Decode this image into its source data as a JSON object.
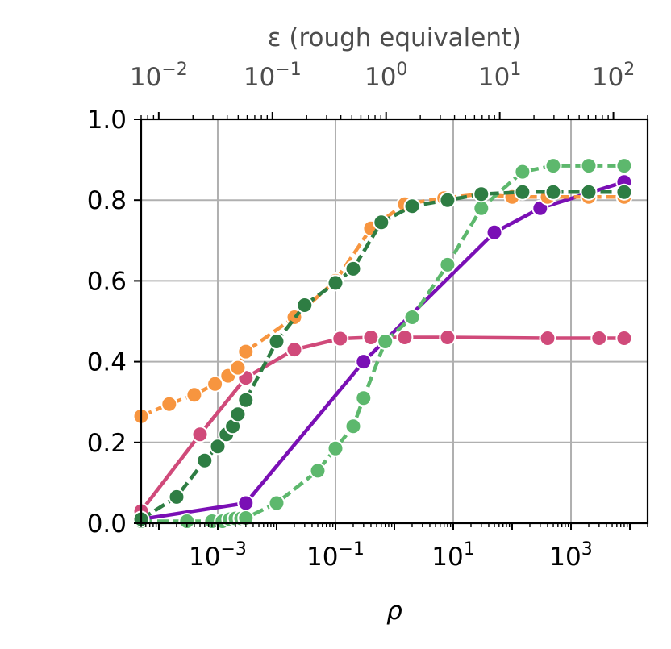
{
  "chart_data": {
    "type": "line",
    "xlabel": "ρ",
    "x_scale": "log",
    "xlim": [
      5e-05,
      20000
    ],
    "ylim": [
      0.0,
      1.0
    ],
    "grid": true,
    "legend": "none",
    "x_ticks": [
      {
        "value": 0.001,
        "base": "10",
        "exp": "−3"
      },
      {
        "value": 0.1,
        "base": "10",
        "exp": "−1"
      },
      {
        "value": 10,
        "base": "10",
        "exp": "1"
      },
      {
        "value": 1000,
        "base": "10",
        "exp": "3"
      }
    ],
    "y_ticks": [
      {
        "value": 0.0,
        "label": "0.0"
      },
      {
        "value": 0.2,
        "label": "0.2"
      },
      {
        "value": 0.4,
        "label": "0.4"
      },
      {
        "value": 0.6,
        "label": "0.6"
      },
      {
        "value": 0.8,
        "label": "0.8"
      },
      {
        "value": 1.0,
        "label": "1.0"
      }
    ],
    "top_axis": {
      "label": "ε (rough equivalent)",
      "scale": "log",
      "xlim": [
        0.007,
        200
      ],
      "ticks": [
        {
          "value": 0.01,
          "base": "10",
          "exp": "−2"
        },
        {
          "value": 0.1,
          "base": "10",
          "exp": "−1"
        },
        {
          "value": 1,
          "base": "10",
          "exp": "0"
        },
        {
          "value": 10,
          "base": "10",
          "exp": "1"
        },
        {
          "value": 100,
          "base": "10",
          "exp": "2"
        }
      ]
    },
    "series": [
      {
        "color": "#7a0fb5",
        "line": "solid",
        "x": [
          5e-05,
          0.003,
          0.3,
          50,
          300,
          8000
        ],
        "y": [
          0.01,
          0.05,
          0.4,
          0.72,
          0.78,
          0.845
        ]
      },
      {
        "color": "#d04a7a",
        "line": "solid",
        "x": [
          5e-05,
          0.0005,
          0.003,
          0.02,
          0.12,
          0.4,
          1.5,
          8,
          400,
          3000,
          8000
        ],
        "y": [
          0.03,
          0.22,
          0.36,
          0.43,
          0.457,
          0.46,
          0.46,
          0.46,
          0.458,
          0.458,
          0.458
        ]
      },
      {
        "color": "#f7953f",
        "line": "dashed",
        "x": [
          5e-05,
          0.00015,
          0.0004,
          0.0009,
          0.0015,
          0.0022,
          0.003,
          0.02,
          0.1,
          0.4,
          1.5,
          7,
          30,
          100,
          400,
          2000,
          8000
        ],
        "y": [
          0.265,
          0.295,
          0.318,
          0.345,
          0.365,
          0.385,
          0.425,
          0.51,
          0.6,
          0.73,
          0.79,
          0.805,
          0.815,
          0.808,
          0.808,
          0.808,
          0.808
        ]
      },
      {
        "color": "#5db86d",
        "line": "dashed",
        "x": [
          5e-05,
          0.0003,
          0.0008,
          0.0012,
          0.0016,
          0.002,
          0.0025,
          0.003,
          0.01,
          0.05,
          0.1,
          0.2,
          0.3,
          0.7,
          2,
          8,
          30,
          150,
          500,
          2000,
          8000
        ],
        "y": [
          0.005,
          0.005,
          0.005,
          0.005,
          0.01,
          0.012,
          0.012,
          0.013,
          0.05,
          0.13,
          0.185,
          0.24,
          0.31,
          0.45,
          0.51,
          0.64,
          0.78,
          0.87,
          0.885,
          0.885,
          0.885
        ]
      },
      {
        "color": "#2e7d43",
        "line": "dashed",
        "x": [
          5e-05,
          0.0002,
          0.0006,
          0.001,
          0.0014,
          0.0018,
          0.0022,
          0.003,
          0.01,
          0.03,
          0.1,
          0.2,
          0.6,
          2,
          8,
          30,
          150,
          500,
          2000,
          8000
        ],
        "y": [
          0.01,
          0.065,
          0.155,
          0.19,
          0.22,
          0.24,
          0.27,
          0.305,
          0.45,
          0.54,
          0.595,
          0.63,
          0.745,
          0.785,
          0.8,
          0.815,
          0.82,
          0.82,
          0.82,
          0.82
        ]
      }
    ]
  }
}
